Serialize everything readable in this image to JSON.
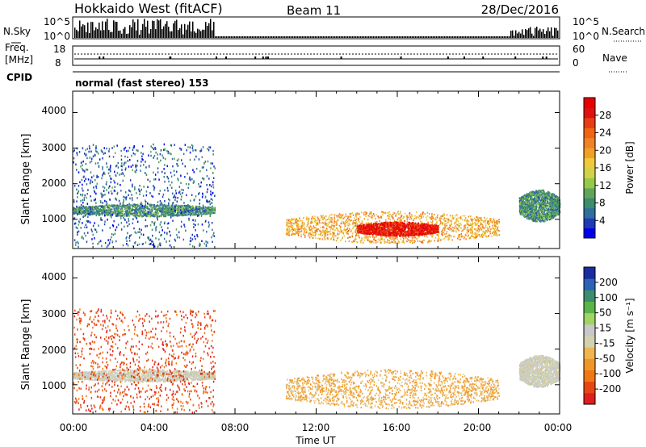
{
  "header": {
    "station": "Hokkaido West (fitACF)",
    "beam": "Beam 11",
    "date": "28/Dec/2016"
  },
  "aux": {
    "nsky_label": "N.Sky",
    "nsearch_label": "N.Search",
    "freq_label_1": "Freq.",
    "freq_label_2": "[MHz]",
    "nave_label": "Nave",
    "cpid_label": "CPID",
    "cpid_text": "normal (fast stereo) 153",
    "noise_ticks": [
      "10^5",
      "10^0"
    ],
    "freq_ticks": [
      "18",
      "8"
    ],
    "nave_ticks": [
      "60",
      "0"
    ]
  },
  "xaxis": {
    "label": "Time UT",
    "ticks": [
      "00:00",
      "04:00",
      "08:00",
      "12:00",
      "16:00",
      "20:00",
      "00:00"
    ]
  },
  "yaxis": {
    "label": "Slant Range [km]",
    "ticks": [
      "1000",
      "2000",
      "3000",
      "4000"
    ]
  },
  "colorbars": {
    "power": {
      "label": "Power [dB]",
      "ticks": [
        "4",
        "8",
        "12",
        "16",
        "20",
        "24",
        "28"
      ],
      "colors": [
        "#0000ee",
        "#1c3cb4",
        "#2f6e9e",
        "#3c8c6e",
        "#62a55a",
        "#96c84a",
        "#d2d24a",
        "#f0c83c",
        "#f0a028",
        "#f08228",
        "#f06414",
        "#e83c14",
        "#e01010",
        "#e80000"
      ]
    },
    "velocity": {
      "label": "Velocity [m s⁻¹]",
      "ticks": [
        "200",
        "100",
        "50",
        "15",
        "-15",
        "-50",
        "-100",
        "-200"
      ],
      "colors": [
        "#1a2ca0",
        "#2c64b4",
        "#3c8c6e",
        "#5ab44a",
        "#a0d464",
        "#c8c8c8",
        "#d2d2b0",
        "#f0b450",
        "#f09628",
        "#f07814",
        "#e64614",
        "#e01e1e"
      ]
    }
  },
  "chart_data": [
    {
      "type": "heatmap",
      "title": "Power",
      "xlabel": "Time UT",
      "ylabel": "Slant Range [km]",
      "xlim": [
        0,
        24
      ],
      "ylim": [
        180,
        4600
      ],
      "color_label": "Power [dB]",
      "regions": [
        {
          "t": [
            0.0,
            7.0
          ],
          "r": [
            1050,
            1400
          ],
          "value_db": 8
        },
        {
          "t": [
            0.0,
            7.0
          ],
          "r": [
            200,
            3100
          ],
          "value_db": 5
        },
        {
          "t": [
            10.5,
            21.0
          ],
          "r": [
            300,
            1200
          ],
          "value_db": 18
        },
        {
          "t": [
            14.0,
            18.0
          ],
          "r": [
            500,
            900
          ],
          "value_db": 27
        },
        {
          "t": [
            22.0,
            24.0
          ],
          "r": [
            900,
            1800
          ],
          "value_db": 8
        }
      ]
    },
    {
      "type": "heatmap",
      "title": "Velocity",
      "xlabel": "Time UT",
      "ylabel": "Slant Range [km]",
      "xlim": [
        0,
        24
      ],
      "ylim": [
        180,
        4600
      ],
      "color_label": "Velocity [m s⁻¹]",
      "regions": [
        {
          "t": [
            0.0,
            7.0
          ],
          "r": [
            1050,
            1400
          ],
          "value_ms": 0
        },
        {
          "t": [
            0.0,
            7.0
          ],
          "r": [
            200,
            3100
          ],
          "value_ms": -150
        },
        {
          "t": [
            10.5,
            21.0
          ],
          "r": [
            300,
            1400
          ],
          "value_ms": -60
        },
        {
          "t": [
            22.0,
            24.0
          ],
          "r": [
            900,
            1800
          ],
          "value_ms": 0
        }
      ]
    }
  ]
}
